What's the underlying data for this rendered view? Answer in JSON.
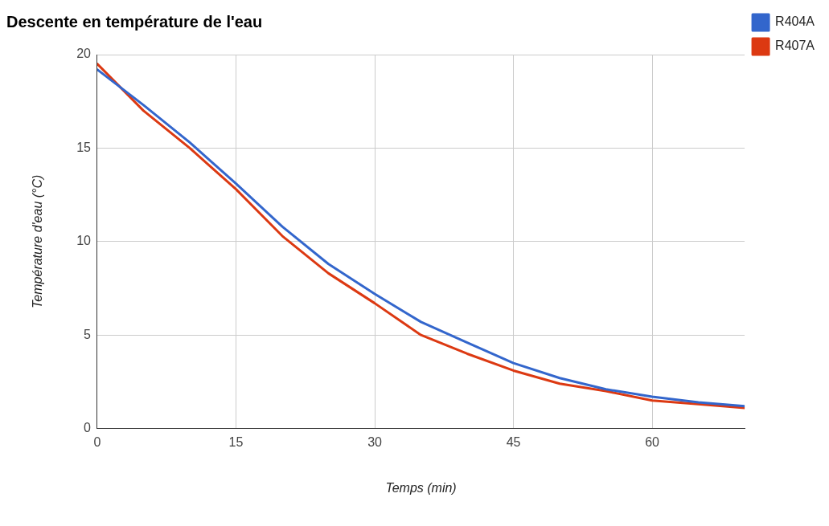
{
  "chart_data": {
    "type": "line",
    "title": "Descente en température de l'eau",
    "xlabel": "Temps (min)",
    "ylabel": "Température d'eau (°C)",
    "x": [
      0,
      5,
      10,
      15,
      20,
      25,
      30,
      35,
      40,
      45,
      50,
      55,
      60,
      65,
      70
    ],
    "xlim": [
      0,
      70
    ],
    "xticks": [
      0,
      15,
      30,
      45,
      60
    ],
    "ylim": [
      0,
      20
    ],
    "yticks": [
      0,
      5,
      10,
      15,
      20
    ],
    "grid": true,
    "legend": "top right",
    "marker": "none",
    "line_style": "solid",
    "series": [
      {
        "name": "R404A",
        "color": "#3366cc",
        "values": [
          19.2,
          17.3,
          15.3,
          13.1,
          10.8,
          8.8,
          7.2,
          5.7,
          4.6,
          3.5,
          2.7,
          2.1,
          1.7,
          1.4,
          1.2
        ]
      },
      {
        "name": "R407A",
        "color": "#dc3912",
        "values": [
          19.5,
          17.0,
          15.0,
          12.8,
          10.3,
          8.3,
          6.7,
          5.0,
          4.0,
          3.1,
          2.4,
          2.0,
          1.5,
          1.3,
          1.1
        ]
      }
    ]
  }
}
